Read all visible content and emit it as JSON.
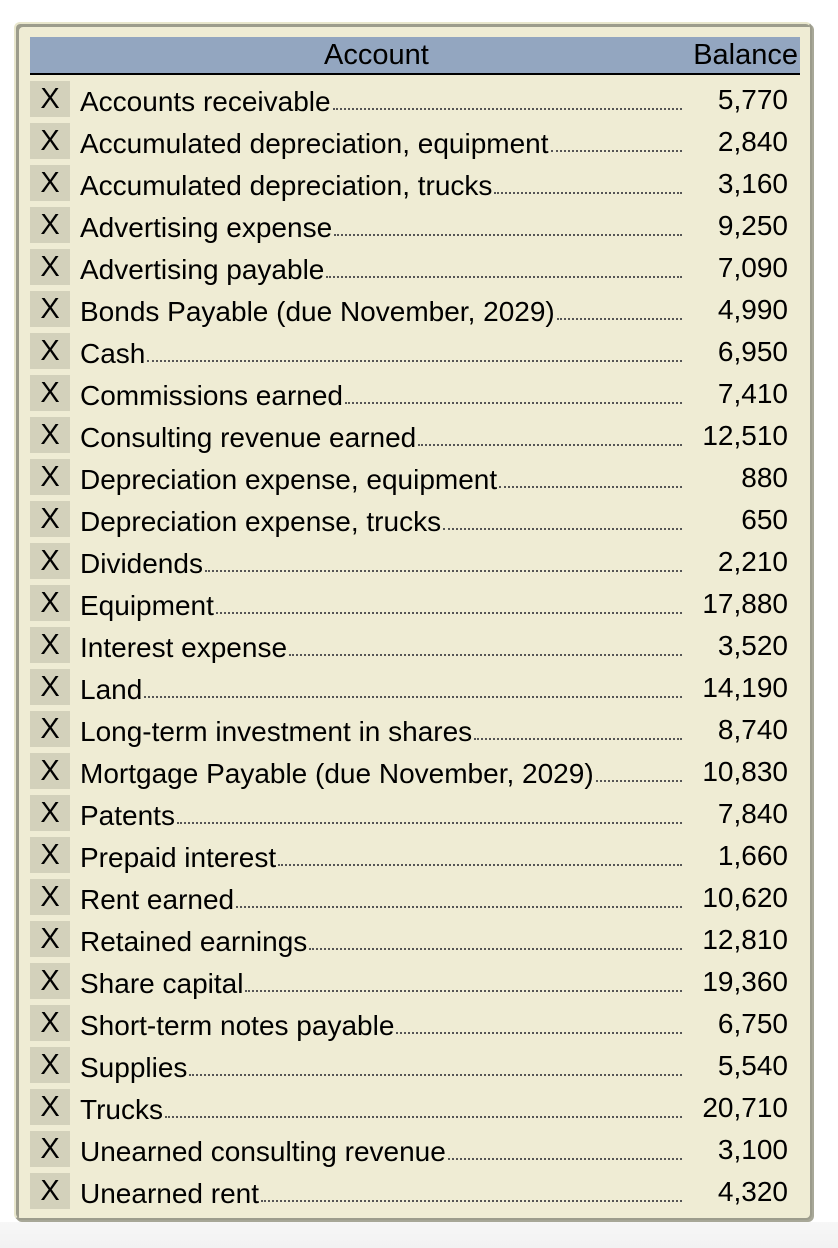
{
  "table": {
    "headers": {
      "account": "Account",
      "balance": "Balance"
    },
    "remove_glyph": "X",
    "rows": [
      {
        "account": "Accounts receivable",
        "balance": "5,770"
      },
      {
        "account": "Accumulated depreciation, equipment",
        "balance": "2,840"
      },
      {
        "account": "Accumulated depreciation, trucks",
        "balance": "3,160"
      },
      {
        "account": "Advertising expense",
        "balance": "9,250"
      },
      {
        "account": "Advertising payable",
        "balance": "7,090"
      },
      {
        "account": "Bonds Payable  (due November, 2029)",
        "balance": "4,990"
      },
      {
        "account": "Cash",
        "balance": "6,950"
      },
      {
        "account": "Commissions earned",
        "balance": "7,410"
      },
      {
        "account": "Consulting revenue earned",
        "balance": "12,510"
      },
      {
        "account": "Depreciation expense, equipment",
        "balance": "880"
      },
      {
        "account": "Depreciation expense, trucks",
        "balance": "650"
      },
      {
        "account": "Dividends",
        "balance": "2,210"
      },
      {
        "account": "Equipment",
        "balance": "17,880"
      },
      {
        "account": "Interest expense",
        "balance": "3,520"
      },
      {
        "account": "Land",
        "balance": "14,190"
      },
      {
        "account": "Long-term investment in shares",
        "balance": "8,740"
      },
      {
        "account": "Mortgage Payable  (due November, 2029)",
        "balance": "10,830"
      },
      {
        "account": "Patents",
        "balance": "7,840"
      },
      {
        "account": "Prepaid interest",
        "balance": "1,660"
      },
      {
        "account": "Rent earned",
        "balance": "10,620"
      },
      {
        "account": "Retained earnings",
        "balance": "12,810"
      },
      {
        "account": "Share capital",
        "balance": "19,360"
      },
      {
        "account": "Short-term notes payable",
        "balance": "6,750"
      },
      {
        "account": "Supplies",
        "balance": "5,540"
      },
      {
        "account": "Trucks",
        "balance": "20,710"
      },
      {
        "account": "Unearned consulting revenue",
        "balance": "3,100"
      },
      {
        "account": "Unearned rent",
        "balance": "4,320"
      }
    ]
  }
}
